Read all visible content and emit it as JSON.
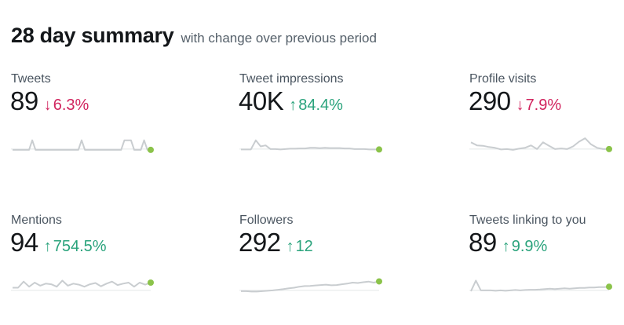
{
  "header": {
    "title": "28 day summary",
    "subtitle": "with change over previous period"
  },
  "colors": {
    "up": "#2aa37c",
    "down": "#d1245e",
    "sparkline": "#c9cdd0",
    "sparkline_end_dot": "#8bc34a"
  },
  "metrics": [
    {
      "label": "Tweets",
      "value": "89",
      "change": "6.3%",
      "direction": "down",
      "arrow_icon": "arrow-down-icon",
      "sparkline": [
        0.08,
        0.08,
        0.08,
        0.08,
        0.08,
        0.08,
        0.55,
        0.08,
        0.08,
        0.08,
        0.08,
        0.08,
        0.08,
        0.08,
        0.08,
        0.08,
        0.08,
        0.08,
        0.08,
        0.08,
        0.08,
        0.55,
        0.08,
        0.08,
        0.08,
        0.08,
        0.08,
        0.08,
        0.08,
        0.08,
        0.08,
        0.08,
        0.08,
        0.08,
        0.55,
        0.55,
        0.55,
        0.08,
        0.08,
        0.08,
        0.55,
        0.08,
        0.08
      ]
    },
    {
      "label": "Tweet impressions",
      "value": "40K",
      "change": "84.4%",
      "direction": "up",
      "arrow_icon": "arrow-up-icon",
      "sparkline": [
        0.1,
        0.1,
        0.1,
        0.55,
        0.25,
        0.3,
        0.12,
        0.12,
        0.1,
        0.12,
        0.14,
        0.14,
        0.15,
        0.15,
        0.18,
        0.18,
        0.16,
        0.18,
        0.17,
        0.17,
        0.17,
        0.15,
        0.15,
        0.12,
        0.12,
        0.12,
        0.1,
        0.1,
        0.1
      ]
    },
    {
      "label": "Profile visits",
      "value": "290",
      "change": "7.9%",
      "direction": "down",
      "arrow_icon": "arrow-down-icon",
      "sparkline": [
        0.45,
        0.3,
        0.28,
        0.22,
        0.18,
        0.1,
        0.12,
        0.08,
        0.14,
        0.18,
        0.3,
        0.12,
        0.45,
        0.28,
        0.12,
        0.15,
        0.12,
        0.25,
        0.48,
        0.65,
        0.35,
        0.18,
        0.12,
        0.12
      ]
    },
    {
      "label": "Mentions",
      "value": "94",
      "change": "754.5%",
      "direction": "up",
      "arrow_icon": "arrow-up-icon",
      "sparkline": [
        0.25,
        0.25,
        0.55,
        0.3,
        0.5,
        0.35,
        0.45,
        0.42,
        0.3,
        0.6,
        0.35,
        0.45,
        0.4,
        0.3,
        0.42,
        0.48,
        0.32,
        0.45,
        0.55,
        0.38,
        0.45,
        0.5,
        0.3,
        0.5,
        0.4,
        0.5
      ]
    },
    {
      "label": "Followers",
      "value": "292",
      "change": "12",
      "direction": "up",
      "arrow_icon": "arrow-up-icon",
      "sparkline": [
        0.08,
        0.08,
        0.06,
        0.06,
        0.08,
        0.1,
        0.12,
        0.15,
        0.18,
        0.22,
        0.25,
        0.3,
        0.33,
        0.34,
        0.36,
        0.38,
        0.4,
        0.37,
        0.38,
        0.42,
        0.45,
        0.5,
        0.48,
        0.52,
        0.55,
        0.5,
        0.56
      ]
    },
    {
      "label": "Tweets linking to you",
      "value": "89",
      "change": "9.9%",
      "direction": "up",
      "arrow_icon": "arrow-up-icon",
      "sparkline": [
        0.08,
        0.6,
        0.12,
        0.12,
        0.12,
        0.1,
        0.12,
        0.1,
        0.12,
        0.14,
        0.12,
        0.14,
        0.15,
        0.15,
        0.16,
        0.18,
        0.2,
        0.18,
        0.2,
        0.22,
        0.2,
        0.22,
        0.24,
        0.24,
        0.26,
        0.26,
        0.28,
        0.28,
        0.3
      ]
    }
  ]
}
